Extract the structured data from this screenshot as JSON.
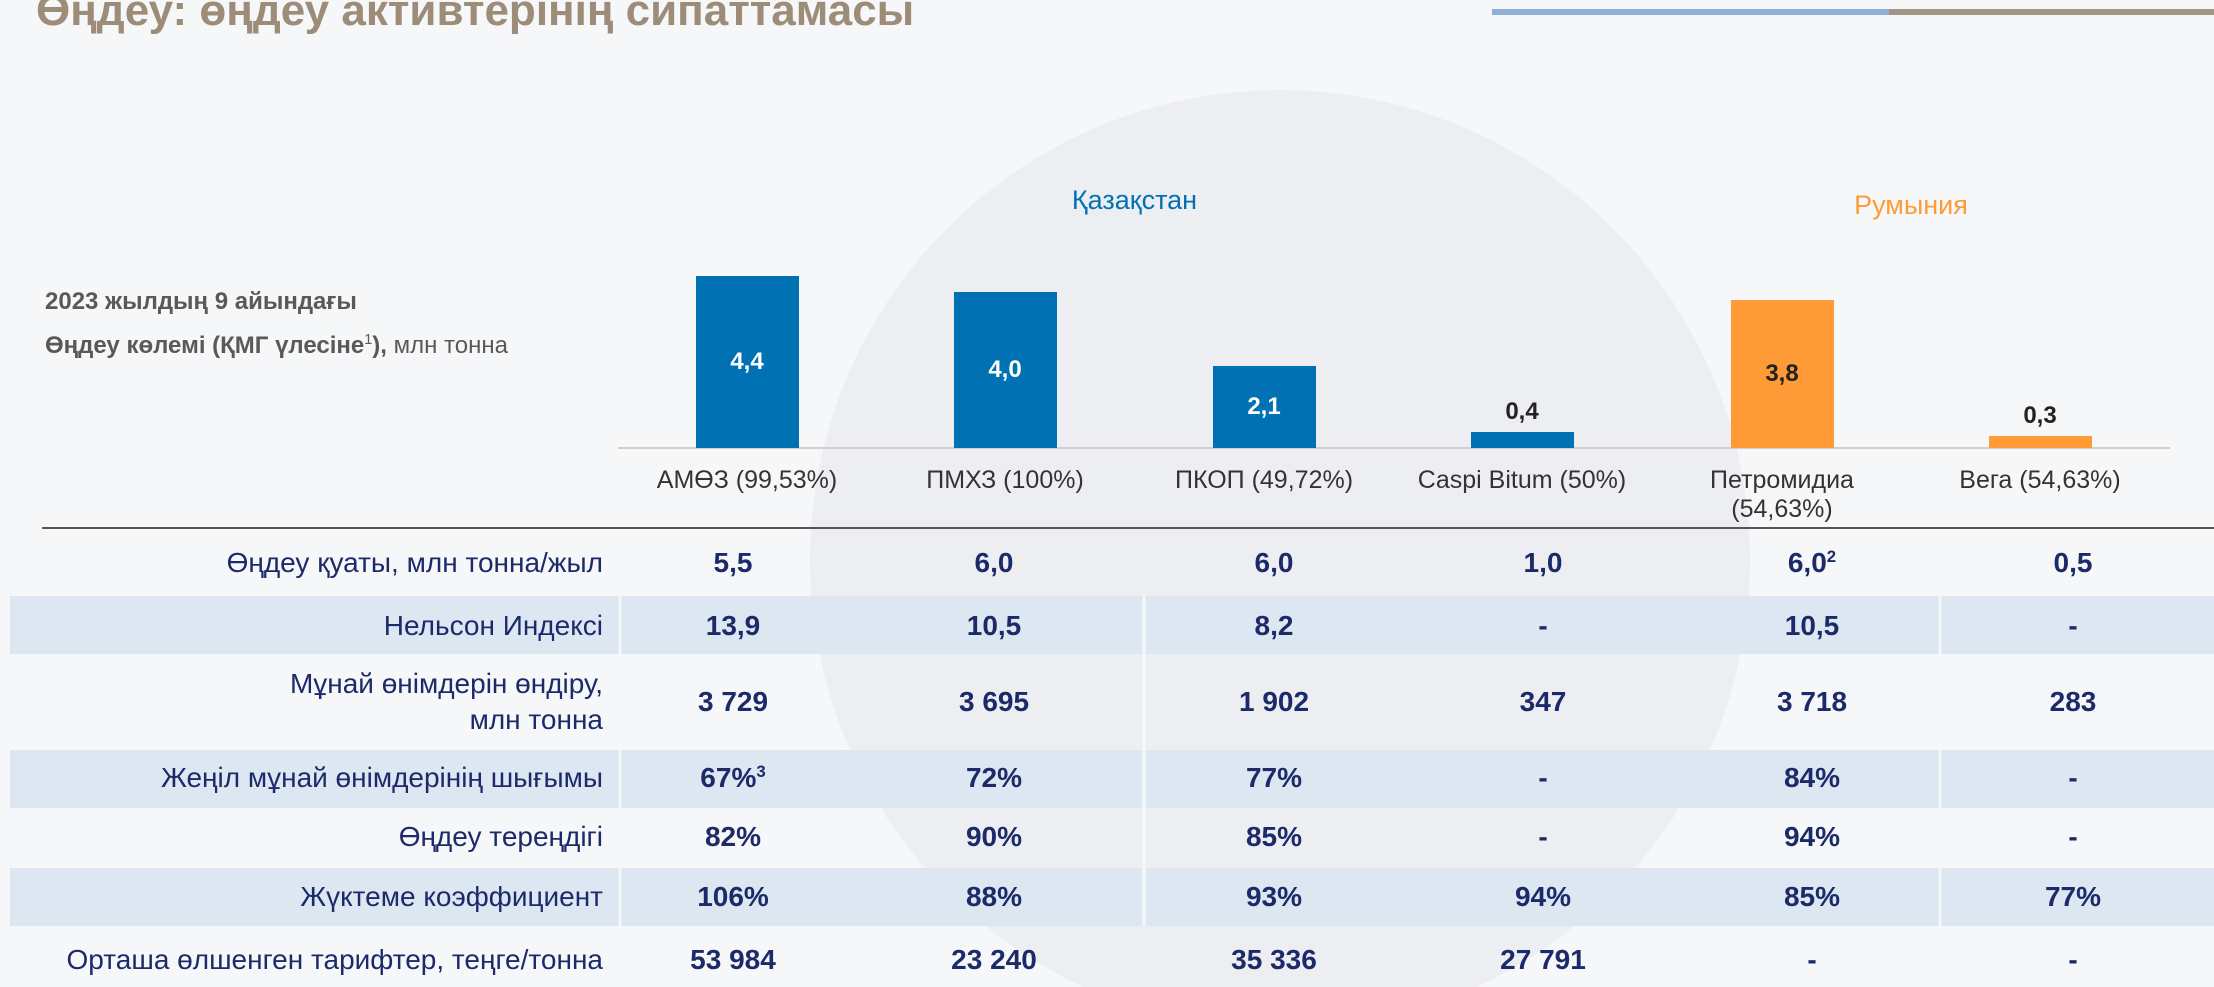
{
  "title": "Өңдеу: өңдеу активтерінің сипаттамасы",
  "chart_data": {
    "type": "bar",
    "y_label": {
      "line1": "2023 жылдың 9 айындағы",
      "bold": "Өңдеу көлемі (ҚМГ үлесіне",
      "sup": "1",
      "bold_end": "),",
      "unit": "млн тонна"
    },
    "groups": [
      {
        "name": "Қазақстан",
        "color": "#0072b3"
      },
      {
        "name": "Румыния",
        "color": "#ff9b36"
      }
    ],
    "categories": [
      "АМӨЗ (99,53%)",
      "ПМХЗ   (100%)",
      "ПКОП  (49,72%)",
      "Caspi Bitum (50%)",
      "Петромидиа (54,63%)",
      "Вега (54,63%)"
    ],
    "values": [
      4.4,
      4.0,
      2.1,
      0.4,
      3.8,
      0.3
    ],
    "value_labels": [
      "4,4",
      "4,0",
      "2,1",
      "0,4",
      "3,8",
      "0,3"
    ],
    "colors": [
      "#0072b3",
      "#0072b3",
      "#0072b3",
      "#0072b3",
      "#ff9b36",
      "#ff9b36"
    ]
  },
  "table": {
    "rows": [
      {
        "label": [
          "Өңдеу қуаты, млн тонна/жыл"
        ],
        "cells": [
          "5,5",
          "6,0",
          "6,0",
          "1,0",
          {
            "text": "6,0",
            "note": "2"
          },
          "0,5"
        ]
      },
      {
        "label": [
          "Нельсон Индексі"
        ],
        "cells": [
          "13,9",
          "10,5",
          "8,2",
          "-",
          "10,5",
          "-"
        ]
      },
      {
        "label": [
          "Мұнай өнімдерін өндіру,",
          "млн тонна"
        ],
        "cells": [
          "3 729",
          "3 695",
          "1 902",
          "347",
          "3 718",
          "283"
        ]
      },
      {
        "label": [
          "Жеңіл мұнай өнімдерінің шығымы"
        ],
        "cells": [
          {
            "text": "67%",
            "note": "3"
          },
          "72%",
          "77%",
          "-",
          "84%",
          "-"
        ]
      },
      {
        "label": [
          "Өңдеу тереңдігі"
        ],
        "cells": [
          "82%",
          "90%",
          "85%",
          "-",
          "94%",
          "-"
        ]
      },
      {
        "label": [
          "Жүктеме коэффициент"
        ],
        "cells": [
          "106%",
          "88%",
          "93%",
          "94%",
          "85%",
          "77%"
        ]
      },
      {
        "label": [
          "Орташа өлшенген тарифтер, теңге/тонна"
        ],
        "cells": [
          "53 984",
          "23 240",
          "35 336",
          "27 791",
          "-",
          "-"
        ]
      }
    ]
  }
}
